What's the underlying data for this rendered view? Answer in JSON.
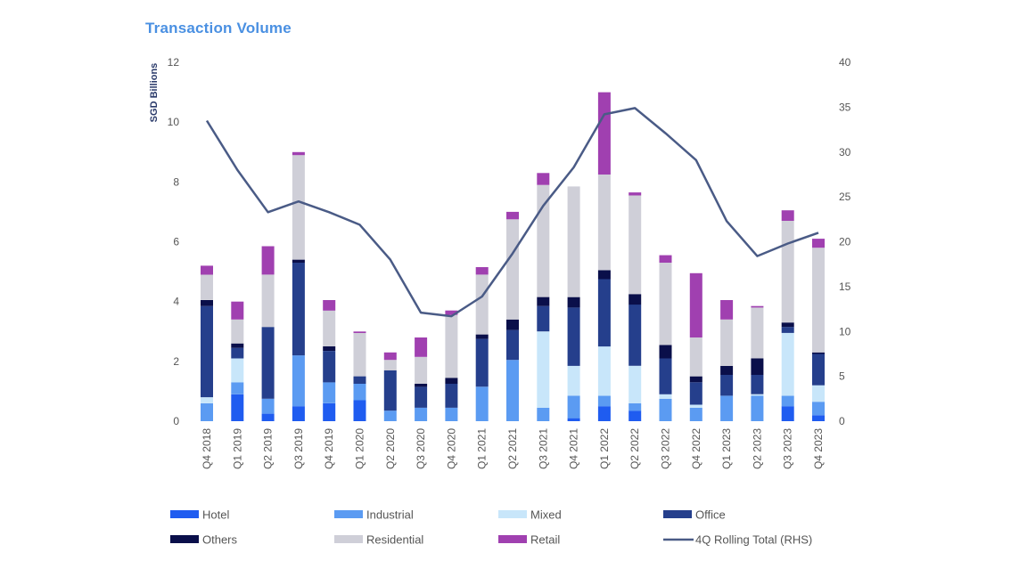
{
  "chart_data": {
    "type": "bar",
    "stacked": true,
    "title": "Transaction Volume",
    "ylabel": "SGD Billions",
    "ylim": [
      0,
      12
    ],
    "yticks": [
      0,
      2,
      4,
      6,
      8,
      10,
      12
    ],
    "y2lim": [
      0,
      40
    ],
    "y2ticks": [
      0,
      5,
      10,
      15,
      20,
      25,
      30,
      35,
      40
    ],
    "grid": false,
    "legend_position": "bottom",
    "categories": [
      "Q4 2018",
      "Q1 2019",
      "Q2 2019",
      "Q3 2019",
      "Q4 2019",
      "Q1 2020",
      "Q2 2020",
      "Q3 2020",
      "Q4 2020",
      "Q1 2021",
      "Q2 2021",
      "Q3 2021",
      "Q4 2021",
      "Q1 2022",
      "Q2 2022",
      "Q3 2022",
      "Q4 2022",
      "Q1 2023",
      "Q2 2023",
      "Q3 2023",
      "Q4 2023"
    ],
    "series": [
      {
        "name": "Hotel",
        "color": "#1f5cf0",
        "values": [
          0,
          0.9,
          0.25,
          0.5,
          0.6,
          0.7,
          0,
          0,
          0,
          0,
          0,
          0,
          0.1,
          0.5,
          0.35,
          0,
          0,
          0,
          0,
          0.5,
          0.2
        ]
      },
      {
        "name": "Industrial",
        "color": "#5b9bf2",
        "values": [
          0.6,
          0.4,
          0.5,
          1.7,
          0.7,
          0.55,
          0.35,
          0.45,
          0.45,
          1.15,
          2.05,
          0.45,
          0.75,
          0.35,
          0.25,
          0.75,
          0.45,
          0.85,
          0.85,
          0.35,
          0.45
        ]
      },
      {
        "name": "Mixed",
        "color": "#c8e6fa",
        "values": [
          0.2,
          0.8,
          0,
          0,
          0,
          0,
          0,
          0,
          0,
          0,
          0,
          2.55,
          1.0,
          1.65,
          1.25,
          0.15,
          0.1,
          0,
          0.05,
          2.1,
          0.55
        ]
      },
      {
        "name": "Office",
        "color": "#253f8c",
        "values": [
          3.05,
          0.35,
          2.4,
          3.1,
          1.05,
          0.25,
          1.35,
          0.7,
          0.8,
          1.6,
          1.0,
          0.85,
          1.95,
          2.25,
          2.05,
          1.2,
          0.75,
          0.7,
          0.65,
          0.2,
          1.05
        ]
      },
      {
        "name": "Others",
        "color": "#0a0f4a",
        "values": [
          0.2,
          0.15,
          0,
          0.1,
          0.15,
          0,
          0,
          0.1,
          0.2,
          0.15,
          0.35,
          0.3,
          0.35,
          0.3,
          0.35,
          0.45,
          0.2,
          0.3,
          0.55,
          0.15,
          0.05
        ]
      },
      {
        "name": "Residential",
        "color": "#cfcfd8",
        "values": [
          0.85,
          0.8,
          1.75,
          3.5,
          1.2,
          1.45,
          0.35,
          0.9,
          2.1,
          2.0,
          3.35,
          3.75,
          3.7,
          3.2,
          3.3,
          2.75,
          1.3,
          1.55,
          1.7,
          3.4,
          3.5
        ]
      },
      {
        "name": "Retail",
        "color": "#a040b0",
        "values": [
          0.3,
          0.6,
          0.95,
          0.1,
          0.35,
          0.05,
          0.25,
          0.65,
          0.15,
          0.25,
          0.25,
          0.4,
          0,
          2.75,
          0.1,
          0.25,
          2.15,
          0.65,
          0.05,
          0.35,
          0.3
        ]
      }
    ],
    "line": {
      "name": "4Q Rolling Total (RHS)",
      "axis": "right",
      "color": "#4a5b86",
      "values": [
        33.5,
        28,
        23.3,
        24.5,
        23.3,
        21.9,
        18,
        12.1,
        11.7,
        13.9,
        18.7,
        24,
        28.3,
        34.2,
        34.9,
        32.1,
        29.1,
        22.3,
        18.4,
        19.8,
        21
      ]
    }
  }
}
